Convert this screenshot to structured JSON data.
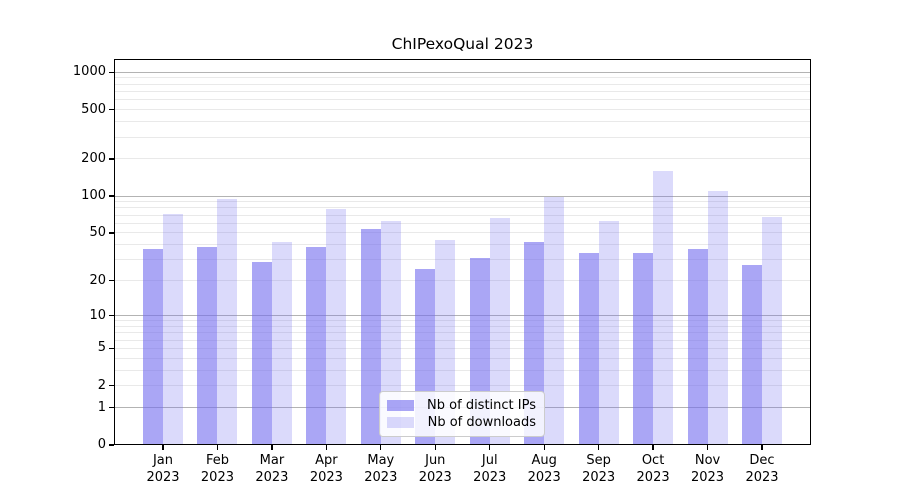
{
  "chart_data": {
    "type": "bar",
    "title": "ChIPexoQual 2023",
    "categories": [
      "Jan",
      "Feb",
      "Mar",
      "Apr",
      "May",
      "Jun",
      "Jul",
      "Aug",
      "Sep",
      "Oct",
      "Nov",
      "Dec"
    ],
    "year_label": "2023",
    "series": [
      {
        "name": "Nb of distinct IPs",
        "color": "rgba(113,106,238,0.60)",
        "values": [
          37,
          38,
          29,
          38,
          54,
          25,
          31,
          42,
          34,
          34,
          37,
          27
        ]
      },
      {
        "name": "Nb of downloads",
        "color": "rgba(113,106,238,0.25)",
        "values": [
          72,
          94,
          42,
          79,
          62,
          44,
          66,
          99,
          62,
          160,
          110,
          68
        ]
      }
    ],
    "xlabel": "",
    "ylabel": "",
    "yscale": "log1p",
    "yticks": [
      0,
      1,
      2,
      5,
      10,
      20,
      50,
      100,
      200,
      500,
      1000
    ],
    "major_gridlines": [
      1,
      10,
      100,
      1000
    ],
    "ylim": [
      0,
      1290
    ],
    "grid": true,
    "legend_position": "lower center",
    "colors": {
      "bar_dark": "rgba(113,106,238,0.60)",
      "bar_light": "rgba(113,106,238,0.25)",
      "grid_major": "#b3b3b3",
      "grid_minor": "#e9e9e9",
      "text": "#000000"
    }
  }
}
